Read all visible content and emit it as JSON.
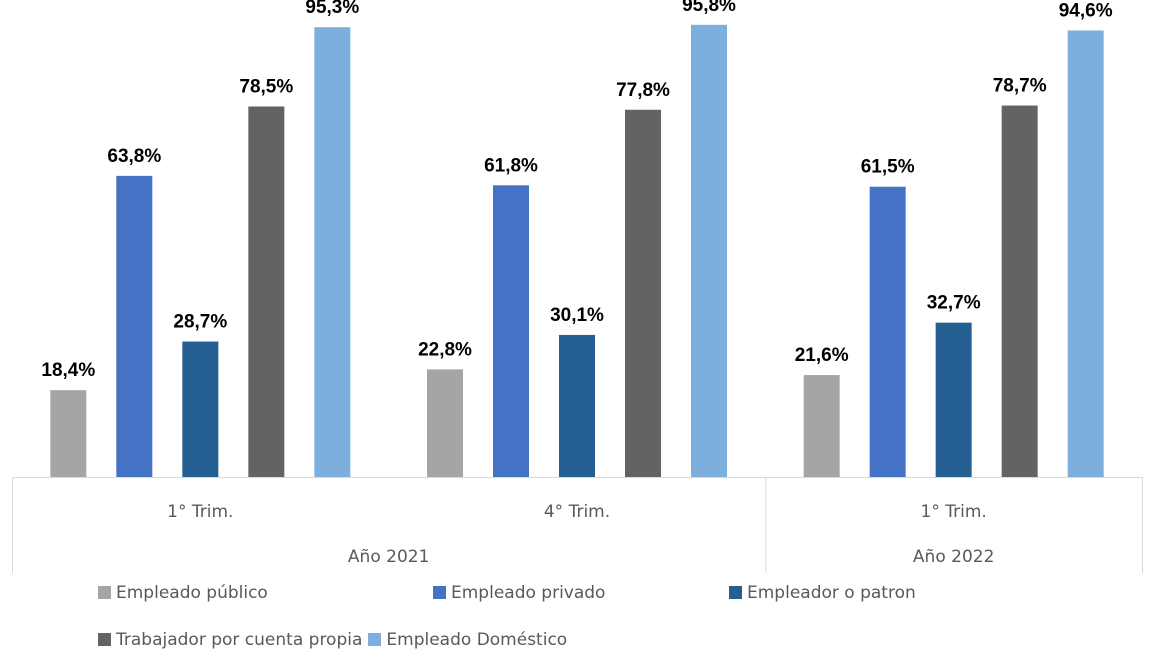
{
  "chart_data": {
    "type": "bar",
    "title": "",
    "xlabel": "",
    "ylabel": "",
    "ylim": [
      0,
      100
    ],
    "grid": false,
    "legend_position": "bottom",
    "groups": [
      {
        "label": "Año 2021",
        "span": 2
      },
      {
        "label": "Año 2022",
        "span": 1
      }
    ],
    "categories": [
      "1° Trim.",
      "4° Trim.",
      "1° Trim."
    ],
    "series": [
      {
        "name": "Empleado público",
        "color": "#A5A5A5",
        "values": [
          18.4,
          22.8,
          21.6
        ],
        "labels": [
          "18,4%",
          "22,8%",
          "21,6%"
        ]
      },
      {
        "name": "Empleado privado",
        "color": "#4472C4",
        "values": [
          63.8,
          61.8,
          61.5
        ],
        "labels": [
          "63,8%",
          "61,8%",
          "61,5%"
        ]
      },
      {
        "name": "Empleador o patron",
        "color": "#255E91",
        "values": [
          28.7,
          30.1,
          32.7
        ],
        "labels": [
          "28,7%",
          "30,1%",
          "32,7%"
        ]
      },
      {
        "name": "Trabajador por cuenta propia",
        "color": "#636363",
        "values": [
          78.5,
          77.8,
          78.7
        ],
        "labels": [
          "78,5%",
          "77,8%",
          "78,7%"
        ]
      },
      {
        "name": "Empleado Doméstico",
        "color": "#7CAFDD",
        "values": [
          95.3,
          95.8,
          94.6
        ],
        "labels": [
          "95,3%",
          "95,8%",
          "94,6%"
        ]
      }
    ]
  },
  "legend": {
    "rows": [
      [
        {
          "label": "Empleado público",
          "color": "#A5A5A5"
        },
        {
          "label": "Empleado privado",
          "color": "#4472C4"
        },
        {
          "label": "Empleador o patron",
          "color": "#255E91"
        }
      ],
      [
        {
          "label": "Trabajador por cuenta propia",
          "color": "#636363"
        },
        {
          "label": "Empleado Doméstico",
          "color": "#7CAFDD"
        }
      ]
    ]
  }
}
